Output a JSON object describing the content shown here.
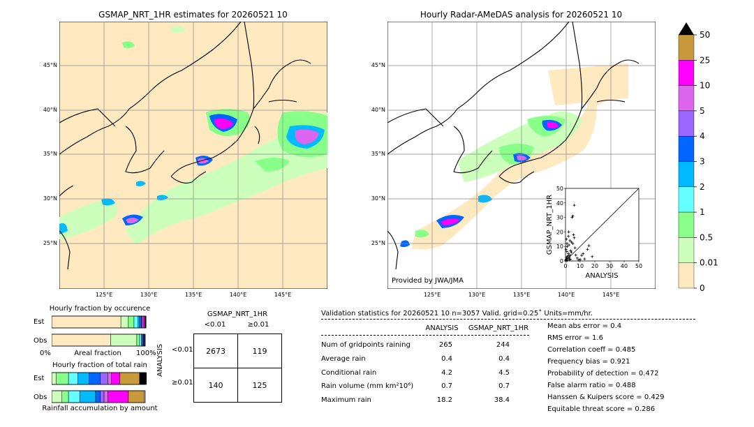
{
  "left_map": {
    "title": "GSMAP_NRT_1HR estimates for 20260521 10",
    "lat_labels": [
      "45°N",
      "40°N",
      "35°N",
      "30°N",
      "25°N"
    ],
    "lon_labels": [
      "125°E",
      "130°E",
      "135°E",
      "140°E",
      "145°E"
    ]
  },
  "right_map": {
    "title": "Hourly Radar-AMeDAS analysis for 20260521 10",
    "lat_labels": [
      "45°N",
      "40°N",
      "35°N",
      "30°N",
      "25°N"
    ],
    "lon_labels": [
      "125°E",
      "130°E",
      "135°E",
      "140°E",
      "145°E"
    ],
    "credit": "Provided by JWA/JMA"
  },
  "colorbar": {
    "labels": [
      "50",
      "25",
      "10",
      "5",
      "4",
      "3",
      "2",
      "1",
      "0.5",
      "0.01",
      "0"
    ],
    "colors": [
      "#c99a3c",
      "#ff00ff",
      "#dd66ee",
      "#9966ff",
      "#0066ff",
      "#00bbff",
      "#66ffff",
      "#88ff88",
      "#ccffbb",
      "#ffe9c0"
    ],
    "overflow_color": "#000000"
  },
  "chart_data": [
    {
      "type": "scatter",
      "title": "",
      "xlabel": "ANALYSIS",
      "ylabel": "GSMAP_NRT_1HR",
      "xlim": [
        0,
        50
      ],
      "ylim": [
        0,
        50
      ],
      "xticks": [
        "0",
        "10",
        "20",
        "30",
        "40",
        "50"
      ],
      "yticks": [
        "0",
        "10",
        "20",
        "30",
        "40",
        "50"
      ],
      "x": [
        0.2,
        0.5,
        0.8,
        1.0,
        1.5,
        2.0,
        2.5,
        3.0,
        0.3,
        1.2,
        4.0,
        5.0,
        6.0,
        0.6,
        2.2,
        3.5,
        1.8,
        0.4,
        7.0,
        8.0,
        10.0,
        12.0,
        15.0,
        18.2,
        4.5,
        5.5,
        2.8,
        1.1,
        0.9,
        6.5,
        3.2,
        0.7,
        2.4,
        9.0,
        11.0,
        13.0,
        16.0,
        5.0,
        6.0,
        4.0,
        3.0,
        2.0,
        1.0
      ],
      "y": [
        0.5,
        1.0,
        2.0,
        3.0,
        1.5,
        5.0,
        2.5,
        4.0,
        8.0,
        10.0,
        6.0,
        12.0,
        38.4,
        15.0,
        20.0,
        7.0,
        3.5,
        0.2,
        4.0,
        2.0,
        1.0,
        5.0,
        8.0,
        3.0,
        30.0,
        18.0,
        0.8,
        0.3,
        6.5,
        9.0,
        1.2,
        2.2,
        11.0,
        0.6,
        3.8,
        1.4,
        10.5,
        31.0,
        16.0,
        13.0,
        14.0,
        17.0,
        12.0
      ]
    },
    {
      "type": "bar",
      "title": "Hourly fraction by occurence",
      "categories": [
        "Est",
        "Obs"
      ],
      "xlabel": "Areal fraction",
      "xticks": [
        "0%",
        "100%"
      ],
      "bins": [
        "0",
        "0.01",
        "0.5",
        "1",
        "2",
        "3",
        "4",
        "5",
        "10",
        "25",
        "50"
      ],
      "series": [
        {
          "name": "Est",
          "values": [
            0.74,
            0.08,
            0.06,
            0.04,
            0.02,
            0.02,
            0.01,
            0.015,
            0.015,
            0.005,
            0.005
          ]
        },
        {
          "name": "Obs",
          "values": [
            0.63,
            0.28,
            0.03,
            0.02,
            0.01,
            0.01,
            0.005,
            0.005,
            0.005,
            0.0,
            0.0
          ]
        }
      ]
    },
    {
      "type": "bar",
      "title": "Hourly fraction of total rain",
      "categories": [
        "Est",
        "Obs"
      ],
      "xlabel": "Rainfall accumulation by amount",
      "bins": [
        "0",
        "0.01",
        "0.5",
        "1",
        "2",
        "3",
        "4",
        "5",
        "10",
        "25",
        "50"
      ],
      "series": [
        {
          "name": "Est",
          "values": [
            0.0,
            0.05,
            0.13,
            0.1,
            0.12,
            0.12,
            0.08,
            0.04,
            0.09,
            0.21,
            0.09
          ]
        },
        {
          "name": "Obs",
          "values": [
            0.0,
            0.11,
            0.07,
            0.12,
            0.17,
            0.05,
            0.04,
            0.04,
            0.22,
            0.17,
            0.0
          ]
        }
      ]
    },
    {
      "type": "table",
      "title": "GSMAP_NRT_1HR",
      "col_headers": [
        "<0.01",
        "≥0.01"
      ],
      "row_title": "ANALYSIS",
      "row_headers": [
        "<0.01",
        "≥0.01"
      ],
      "cells": [
        [
          "2673",
          "119"
        ],
        [
          "140",
          "125"
        ]
      ]
    }
  ],
  "validation": {
    "header": "Validation statistics for 20260521 10  n=3057 Valid. grid=0.25˚ Units=mm/hr.",
    "col_analysis": "ANALYSIS",
    "col_gsmap": "GSMAP_NRT_1HR",
    "rows": [
      {
        "label": "Num of gridpoints raining",
        "analysis": "265",
        "gsmap": "244"
      },
      {
        "label": "Average rain",
        "analysis": "0.4",
        "gsmap": "0.4"
      },
      {
        "label": "Conditional rain",
        "analysis": "4.2",
        "gsmap": "4.5"
      },
      {
        "label": "Rain volume (mm km²10⁶)",
        "analysis": "0.7",
        "gsmap": "0.7"
      },
      {
        "label": "Maximum rain",
        "analysis": "18.2",
        "gsmap": "38.4"
      }
    ],
    "scores": [
      "Mean abs error =    0.4",
      "RMS error =    1.6",
      "Correlation coeff =  0.485",
      "Frequency bias =  0.921",
      "Probability of detection =  0.472",
      "False alarm ratio =  0.488",
      "Hanssen & Kuipers score =  0.429",
      "Equitable threat score =  0.286"
    ]
  }
}
